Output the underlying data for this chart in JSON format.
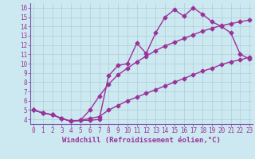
{
  "xlabel": "Windchill (Refroidissement éolien,°C)",
  "bg_color": "#cce8f0",
  "line_color": "#993399",
  "grid_color": "#b0cdd8",
  "spine_color": "#7755aa",
  "x_ticks": [
    0,
    1,
    2,
    3,
    4,
    5,
    6,
    7,
    8,
    9,
    10,
    11,
    12,
    13,
    14,
    15,
    16,
    17,
    18,
    19,
    20,
    21,
    22,
    23
  ],
  "y_ticks": [
    4,
    5,
    6,
    7,
    8,
    9,
    10,
    11,
    12,
    13,
    14,
    15,
    16
  ],
  "line1_x": [
    0,
    1,
    2,
    3,
    4,
    5,
    6,
    7,
    8,
    9,
    10,
    11,
    12,
    13,
    14,
    15,
    16,
    17,
    18,
    19,
    20,
    21,
    22,
    23
  ],
  "line1_y": [
    5.0,
    4.7,
    4.5,
    4.1,
    3.8,
    3.9,
    3.9,
    4.0,
    8.7,
    9.8,
    10.0,
    12.2,
    11.1,
    13.3,
    15.0,
    15.8,
    15.1,
    16.0,
    15.3,
    14.5,
    14.0,
    13.3,
    11.0,
    10.5
  ],
  "line2_x": [
    0,
    1,
    2,
    3,
    4,
    5,
    6,
    7,
    8,
    9,
    10,
    11,
    12,
    13,
    14,
    15,
    16,
    17,
    18,
    19,
    20,
    21,
    22,
    23
  ],
  "line2_y": [
    5.0,
    4.7,
    4.5,
    4.1,
    3.8,
    3.9,
    5.0,
    6.5,
    7.8,
    8.8,
    9.5,
    10.2,
    10.8,
    11.4,
    11.9,
    12.3,
    12.7,
    13.1,
    13.5,
    13.8,
    14.1,
    14.3,
    14.5,
    14.7
  ],
  "line3_x": [
    0,
    1,
    2,
    3,
    4,
    5,
    6,
    7,
    8,
    9,
    10,
    11,
    12,
    13,
    14,
    15,
    16,
    17,
    18,
    19,
    20,
    21,
    22,
    23
  ],
  "line3_y": [
    5.0,
    4.7,
    4.5,
    4.1,
    3.8,
    3.9,
    4.1,
    4.3,
    5.0,
    5.5,
    6.0,
    6.4,
    6.8,
    7.2,
    7.6,
    8.0,
    8.4,
    8.8,
    9.2,
    9.5,
    9.9,
    10.2,
    10.4,
    10.7
  ],
  "xlim": [
    -0.3,
    23.3
  ],
  "ylim": [
    3.5,
    16.5
  ],
  "marker": "D",
  "marker_size": 2.5,
  "line_width": 1.0,
  "font_size_tick": 5.5,
  "font_size_label": 6.5
}
